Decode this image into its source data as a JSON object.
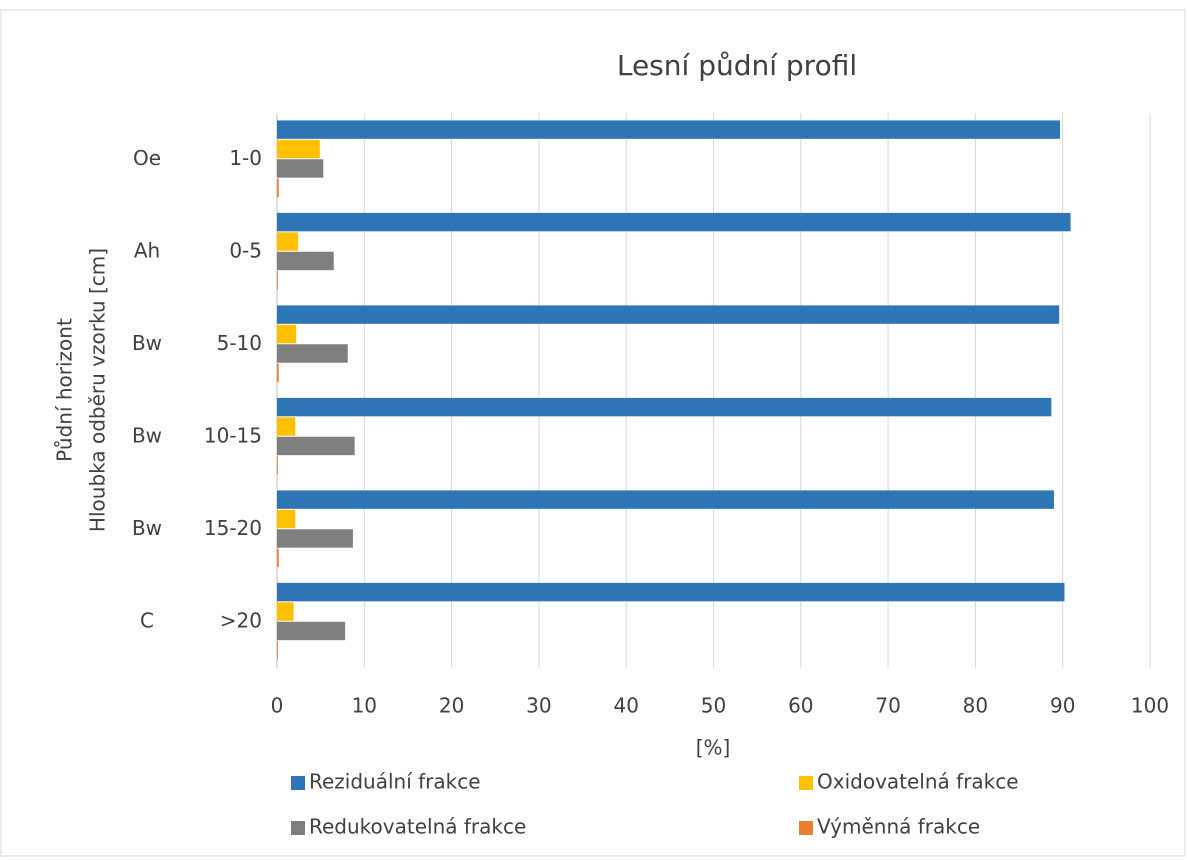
{
  "chart_data": {
    "type": "barh",
    "title": "Lesní půdní profil",
    "category_groups": [
      "Oe",
      "Ah",
      "Bw",
      "Bw",
      "Bw",
      "C"
    ],
    "categories": [
      "1-0",
      "0-5",
      "5-10",
      "10-15",
      "15-20",
      ">20"
    ],
    "series": [
      {
        "name": "Reziduální frakce",
        "color": "#2e75b6",
        "values": [
          89.7,
          90.9,
          89.6,
          88.7,
          89.0,
          90.2
        ]
      },
      {
        "name": "Oxidovatelná frakce",
        "color": "#ffc000",
        "values": [
          4.9,
          2.4,
          2.2,
          2.1,
          2.1,
          1.9
        ]
      },
      {
        "name": "Redukovatelná frakce",
        "color": "#7f7f7f",
        "values": [
          5.3,
          6.5,
          8.1,
          8.9,
          8.7,
          7.8
        ]
      },
      {
        "name": "Výměnná frakce",
        "color": "#ed7d31",
        "values": [
          0.2,
          0.1,
          0.2,
          0.1,
          0.2,
          0.1
        ]
      }
    ],
    "xlabel": "[%]",
    "ylabel": [
      "Půdní horizont",
      "Hloubka odběru vzorku [cm]"
    ],
    "xlim": [
      0,
      100
    ],
    "xticks": [
      0,
      10,
      20,
      30,
      40,
      50,
      60,
      70,
      80,
      90,
      100
    ],
    "grid": true,
    "legend": "bottom"
  }
}
